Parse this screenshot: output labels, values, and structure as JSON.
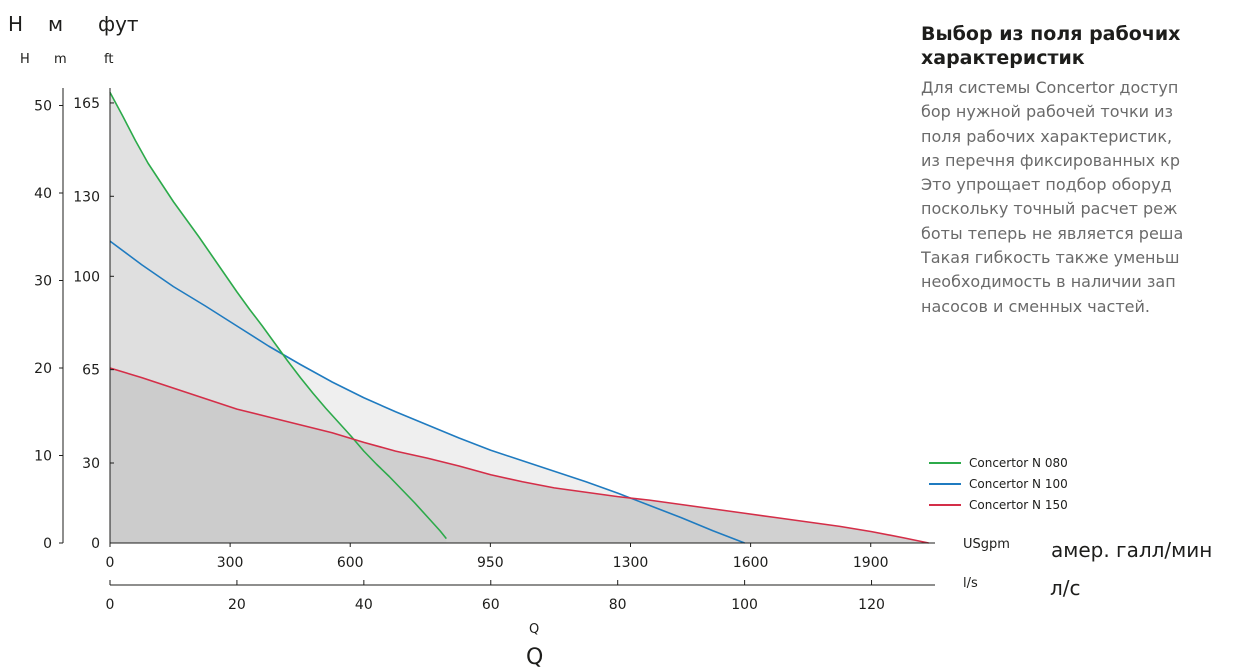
{
  "y_axis": {
    "top_labels": [
      "Н",
      "м",
      "фут"
    ],
    "sub_labels": [
      "H",
      "m",
      "ft"
    ],
    "h_ticks": [
      "0",
      "10",
      "20",
      "30",
      "40",
      "50"
    ],
    "ft_ticks": [
      "0",
      "30",
      "65",
      "100",
      "130",
      "165"
    ]
  },
  "x_axis": {
    "usgpm_unit": "USgpm",
    "usgpm_unit_ru": "амер. галл/мин",
    "ls_unit": "l/s",
    "ls_unit_ru": "л/с",
    "usgpm_ticks": [
      "0",
      "300",
      "600",
      "950",
      "1300",
      "1600",
      "1900"
    ],
    "ls_ticks": [
      "0",
      "20",
      "40",
      "60",
      "80",
      "100",
      "120"
    ],
    "q_small": "Q",
    "q_large": "Q"
  },
  "side_panel": {
    "title_lines": [
      "Выбор из поля рабочих",
      "характеристик"
    ],
    "body_lines": [
      "Для системы Concertor доступ",
      "бор нужной рабочей точки из",
      "поля рабочих характеристик,",
      "из перечня фиксированных кр",
      "Это упрощает подбор оборуд",
      "поскольку точный расчет реж",
      "боты теперь не является реша",
      "Такая гибкость также уменьш",
      "необходимость в наличии зап",
      "насосов и сменных  частей."
    ]
  },
  "chart_data": {
    "type": "line",
    "x_unit": "l/s",
    "y_unit": "m",
    "xlim": [
      0,
      130
    ],
    "ylim": [
      0,
      52
    ],
    "fill_colors": [
      "#ececec",
      "#dcdcdc",
      "#c9c9c9"
    ],
    "series": [
      {
        "name": "Concertor  N 100",
        "color": "#1f7bc0",
        "x": [
          0,
          5,
          10,
          15,
          20,
          25,
          30,
          35,
          40,
          45,
          50,
          55,
          60,
          65,
          70,
          75,
          80,
          85,
          90,
          95,
          100
        ],
        "y": [
          34.5,
          31.8,
          29.3,
          27.1,
          24.8,
          22.5,
          20.4,
          18.4,
          16.6,
          15.0,
          13.5,
          12.0,
          10.6,
          9.4,
          8.2,
          7.0,
          5.7,
          4.3,
          2.9,
          1.4,
          0
        ]
      },
      {
        "name": "Concertor  N 080",
        "color": "#2caa4a",
        "x": [
          0,
          2,
          4,
          6,
          8,
          10,
          12,
          14,
          16,
          18,
          20,
          22,
          24,
          26,
          28,
          30,
          32,
          34,
          36,
          38,
          40,
          42,
          44,
          46,
          48,
          50,
          52,
          53
        ],
        "y": [
          51.5,
          48.8,
          46.0,
          43.4,
          41.2,
          39.0,
          37.0,
          35.0,
          32.9,
          30.8,
          28.7,
          26.7,
          24.8,
          22.8,
          20.8,
          18.9,
          17.1,
          15.4,
          13.8,
          12.2,
          10.5,
          9.0,
          7.6,
          6.1,
          4.6,
          3.0,
          1.4,
          0.5
        ]
      },
      {
        "name": "Concertor  N 150",
        "color": "#d42e48",
        "x": [
          0,
          5,
          10,
          15,
          20,
          25,
          30,
          35,
          40,
          45,
          50,
          55,
          60,
          65,
          70,
          75,
          80,
          85,
          90,
          95,
          100,
          105,
          110,
          115,
          120,
          125,
          129
        ],
        "y": [
          20.0,
          18.9,
          17.7,
          16.5,
          15.3,
          14.4,
          13.5,
          12.6,
          11.5,
          10.5,
          9.7,
          8.8,
          7.8,
          7.0,
          6.3,
          5.8,
          5.3,
          4.9,
          4.4,
          3.9,
          3.4,
          2.9,
          2.4,
          1.9,
          1.3,
          0.6,
          0
        ]
      }
    ]
  }
}
